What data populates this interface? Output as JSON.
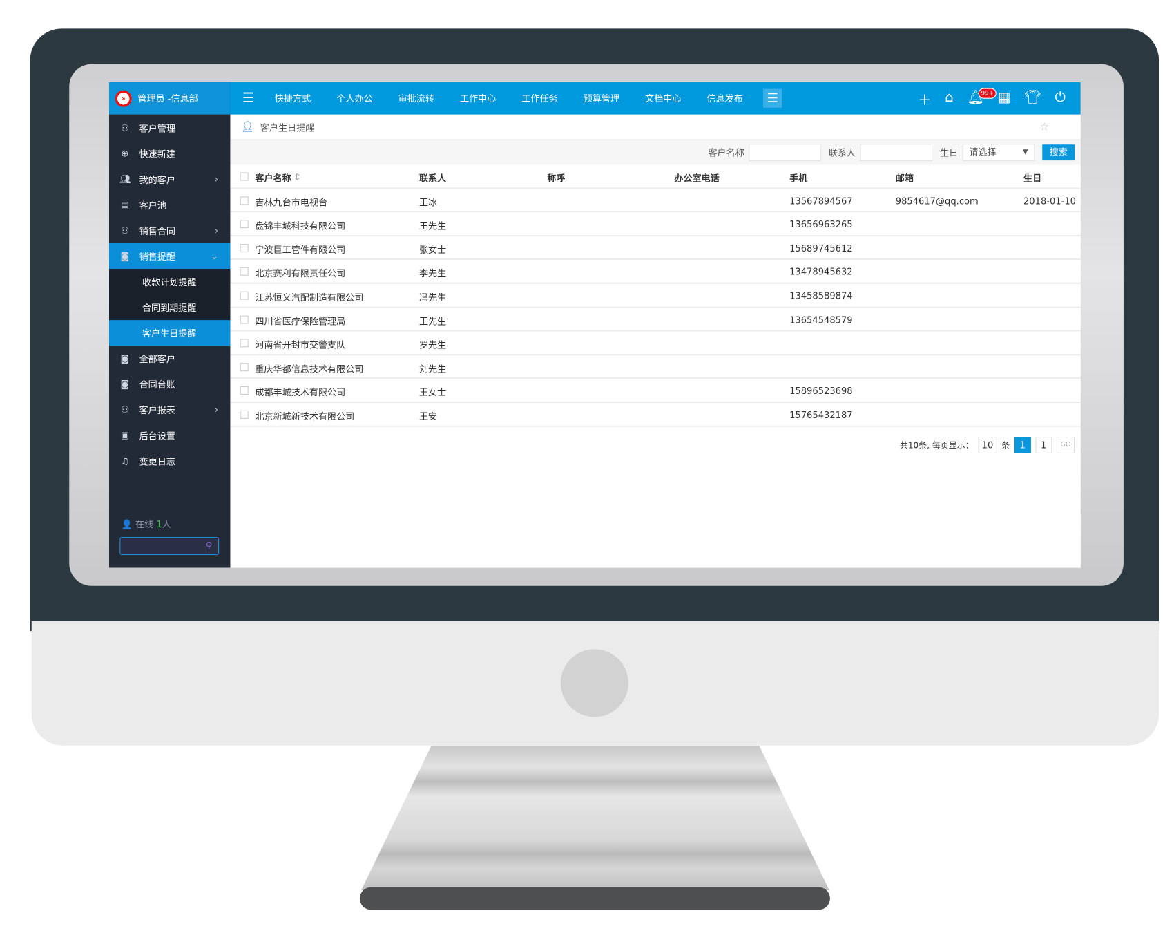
{
  "header": {
    "user": "管理员 -信息部",
    "nav": [
      "快捷方式",
      "个人办公",
      "审批流转",
      "工作中心",
      "工作任务",
      "预算管理",
      "文档中心",
      "信息发布"
    ],
    "notification_badge": "99+",
    "accent": "#0099de"
  },
  "sidebar": {
    "items": [
      {
        "label": "客户管理",
        "icon": "user-icon"
      },
      {
        "label": "快速新建",
        "icon": "plus-circle-icon"
      },
      {
        "label": "我的客户",
        "icon": "users-icon",
        "arrow": true
      },
      {
        "label": "客户池",
        "icon": "clipboard-icon"
      },
      {
        "label": "销售合同",
        "icon": "contract-icon",
        "arrow": true
      },
      {
        "label": "销售提醒",
        "icon": "phone-icon",
        "expanded": true
      },
      {
        "label": "收款计划提醒",
        "sub": true
      },
      {
        "label": "合同到期提醒",
        "sub": true
      },
      {
        "label": "客户生日提醒",
        "sub": true,
        "active": true
      },
      {
        "label": "全部客户",
        "icon": "phone-icon"
      },
      {
        "label": "合同台账",
        "icon": "phone-icon"
      },
      {
        "label": "客户报表",
        "icon": "user-icon",
        "arrow": true
      },
      {
        "label": "后台设置",
        "icon": "settings-icon"
      },
      {
        "label": "变更日志",
        "icon": "bell-icon"
      }
    ],
    "online_label": "在线",
    "online_count": "1",
    "online_unit": "人"
  },
  "breadcrumb": {
    "title": "客户生日提醒"
  },
  "filter": {
    "name_label": "客户名称",
    "contact_label": "联系人",
    "birthday_label": "生日",
    "birthday_value": "请选择",
    "search_label": "搜索"
  },
  "table": {
    "columns": [
      "客户名称",
      "联系人",
      "称呼",
      "办公室电话",
      "手机",
      "邮箱",
      "生日"
    ],
    "rows": [
      [
        "吉林九台市电视台",
        "王冰",
        "",
        "",
        "13567894567",
        "9854617@qq.com",
        "2018-01-10"
      ],
      [
        "盘锦丰城科技有限公司",
        "王先生",
        "",
        "",
        "13656963265",
        "",
        ""
      ],
      [
        "宁波巨工管件有限公司",
        "张女士",
        "",
        "",
        "15689745612",
        "",
        ""
      ],
      [
        "北京赛利有限责任公司",
        "李先生",
        "",
        "",
        "13478945632",
        "",
        ""
      ],
      [
        "江苏恒义汽配制造有限公司",
        "冯先生",
        "",
        "",
        "13458589874",
        "",
        ""
      ],
      [
        "四川省医疗保险管理局",
        "王先生",
        "",
        "",
        "13654548579",
        "",
        ""
      ],
      [
        "河南省开封市交警支队",
        "罗先生",
        "",
        "",
        "",
        "",
        ""
      ],
      [
        "重庆华都信息技术有限公司",
        "刘先生",
        "",
        "",
        "",
        "",
        ""
      ],
      [
        "成都丰城技术有限公司",
        "王女士",
        "",
        "",
        "15896523698",
        "",
        ""
      ],
      [
        "北京新城新技术有限公司",
        "王安",
        "",
        "",
        "15765432187",
        "",
        ""
      ]
    ]
  },
  "pagination": {
    "summary": "共10条, 每页显示：",
    "page_size": "10",
    "unit": "条",
    "current_page": "1",
    "jump_value": "1",
    "go_label": "GO"
  }
}
